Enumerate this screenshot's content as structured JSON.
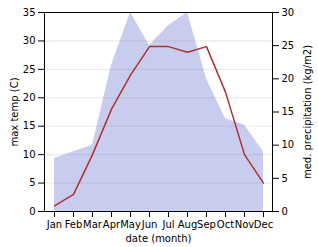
{
  "chart_data": {
    "type": "line",
    "categories": [
      "Jan",
      "Feb",
      "Mar",
      "Apr",
      "May",
      "Jun",
      "Jul",
      "Aug",
      "Sep",
      "Oct",
      "Nov",
      "Dec"
    ],
    "series": [
      {
        "type": "area",
        "axis": "y2",
        "color": "#c8ccee",
        "values": [
          8,
          9,
          10,
          22,
          30,
          25,
          28,
          30,
          20,
          14,
          13,
          9
        ]
      },
      {
        "type": "line",
        "color": "#b03030",
        "values": [
          1,
          3,
          10,
          18,
          24,
          29,
          29,
          28,
          29,
          21,
          10,
          5
        ]
      }
    ],
    "xlabel": "date (month)",
    "ylabel": "max temp (C)",
    "y2label": "med. precipitation (kg/m2)",
    "ylim": [
      0,
      35
    ],
    "yticks": [
      0,
      5,
      10,
      15,
      20,
      25,
      30,
      35
    ],
    "y2lim": [
      0,
      30
    ],
    "y2ticks": [
      0,
      5,
      10,
      15,
      20,
      25,
      30
    ],
    "grid": true
  }
}
